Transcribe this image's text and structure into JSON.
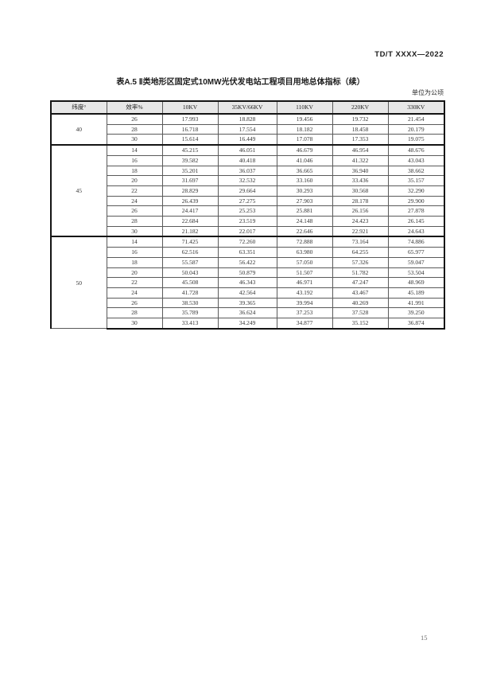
{
  "page": {
    "doc_code": "TD/T XXXX—2022",
    "page_number": "15"
  },
  "table": {
    "title": "表A.5 Ⅱ类地形区固定式10MW光伏发电站工程项目用地总体指标（续）",
    "unit_note": "单位为公顷",
    "headers": {
      "latitude": "纬度°",
      "efficiency": "效率%",
      "v10kv": "10KV",
      "v35kv66kv": "35KV/66KV",
      "v110kv": "110KV",
      "v220kv": "220KV",
      "v330kv": "330KV"
    },
    "groups": [
      {
        "latitude": "40",
        "rows": [
          {
            "efficiency": "26",
            "values": [
              "17.993",
              "18.828",
              "19.456",
              "19.732",
              "21.454"
            ]
          },
          {
            "efficiency": "28",
            "values": [
              "16.718",
              "17.554",
              "18.182",
              "18.458",
              "20.179"
            ]
          },
          {
            "efficiency": "30",
            "values": [
              "15.614",
              "16.449",
              "17.078",
              "17.353",
              "19.075"
            ]
          }
        ]
      },
      {
        "latitude": "45",
        "rows": [
          {
            "efficiency": "14",
            "values": [
              "45.215",
              "46.051",
              "46.679",
              "46.954",
              "48.676"
            ]
          },
          {
            "efficiency": "16",
            "values": [
              "39.582",
              "40.418",
              "41.046",
              "41.322",
              "43.043"
            ]
          },
          {
            "efficiency": "18",
            "values": [
              "35.201",
              "36.037",
              "36.665",
              "36.940",
              "38.662"
            ]
          },
          {
            "efficiency": "20",
            "values": [
              "31.697",
              "32.532",
              "33.160",
              "33.436",
              "35.157"
            ]
          },
          {
            "efficiency": "22",
            "values": [
              "28.829",
              "29.664",
              "30.293",
              "30.568",
              "32.290"
            ]
          },
          {
            "efficiency": "24",
            "values": [
              "26.439",
              "27.275",
              "27.903",
              "28.178",
              "29.900"
            ]
          },
          {
            "efficiency": "26",
            "values": [
              "24.417",
              "25.253",
              "25.881",
              "26.156",
              "27.878"
            ]
          },
          {
            "efficiency": "28",
            "values": [
              "22.684",
              "23.519",
              "24.148",
              "24.423",
              "26.145"
            ]
          },
          {
            "efficiency": "30",
            "values": [
              "21.182",
              "22.017",
              "22.646",
              "22.921",
              "24.643"
            ]
          }
        ]
      },
      {
        "latitude": "50",
        "rows": [
          {
            "efficiency": "14",
            "values": [
              "71.425",
              "72.260",
              "72.888",
              "73.164",
              "74.886"
            ]
          },
          {
            "efficiency": "16",
            "values": [
              "62.516",
              "63.351",
              "63.980",
              "64.255",
              "65.977"
            ]
          },
          {
            "efficiency": "18",
            "values": [
              "55.587",
              "56.422",
              "57.050",
              "57.326",
              "59.047"
            ]
          },
          {
            "efficiency": "20",
            "values": [
              "50.043",
              "50.879",
              "51.507",
              "51.782",
              "53.504"
            ]
          },
          {
            "efficiency": "22",
            "values": [
              "45.508",
              "46.343",
              "46.971",
              "47.247",
              "48.969"
            ]
          },
          {
            "efficiency": "24",
            "values": [
              "41.728",
              "42.564",
              "43.192",
              "43.467",
              "45.189"
            ]
          },
          {
            "efficiency": "26",
            "values": [
              "38.530",
              "39.365",
              "39.994",
              "40.269",
              "41.991"
            ]
          },
          {
            "efficiency": "28",
            "values": [
              "35.789",
              "36.624",
              "37.253",
              "37.528",
              "39.250"
            ]
          },
          {
            "efficiency": "30",
            "values": [
              "33.413",
              "34.249",
              "34.877",
              "35.152",
              "36.874"
            ]
          }
        ]
      }
    ]
  }
}
